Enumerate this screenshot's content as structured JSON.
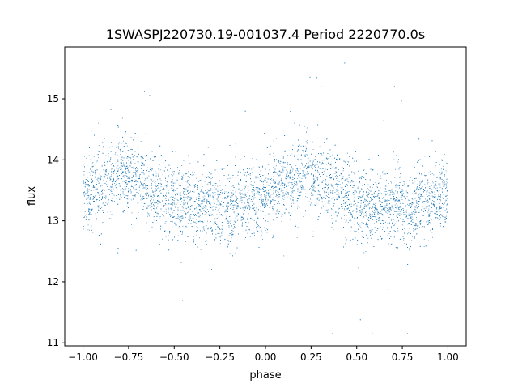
{
  "chart_data": {
    "type": "scatter",
    "title": "1SWASPJ220730.19-001037.4 Period 2220770.0s",
    "xlabel": "phase",
    "ylabel": "flux",
    "xlim": [
      -1.1,
      1.1
    ],
    "ylim": [
      10.95,
      15.85
    ],
    "xticks": [
      -1.0,
      -0.75,
      -0.5,
      -0.25,
      0.0,
      0.25,
      0.5,
      0.75,
      1.0
    ],
    "xtick_labels": [
      "−1.00",
      "−0.75",
      "−0.50",
      "−0.25",
      "0.00",
      "0.25",
      "0.50",
      "0.75",
      "1.00"
    ],
    "yticks": [
      11,
      12,
      13,
      14,
      15
    ],
    "ytick_labels": [
      "11",
      "12",
      "13",
      "14",
      "15"
    ],
    "grid": false,
    "legend": "none",
    "marker_color": "#1f77b4",
    "series": [
      {
        "phase_profile": [
          {
            "x": -1.0,
            "y": 13.45
          },
          {
            "x": -0.9,
            "y": 13.55
          },
          {
            "x": -0.8,
            "y": 13.8
          },
          {
            "x": -0.7,
            "y": 13.7
          },
          {
            "x": -0.6,
            "y": 13.5
          },
          {
            "x": -0.5,
            "y": 13.3
          },
          {
            "x": -0.4,
            "y": 13.25
          },
          {
            "x": -0.3,
            "y": 13.25
          },
          {
            "x": -0.2,
            "y": 13.2
          },
          {
            "x": -0.1,
            "y": 13.3
          },
          {
            "x": 0.0,
            "y": 13.45
          },
          {
            "x": 0.1,
            "y": 13.55
          },
          {
            "x": 0.2,
            "y": 13.8
          },
          {
            "x": 0.3,
            "y": 13.7
          },
          {
            "x": 0.4,
            "y": 13.5
          },
          {
            "x": 0.5,
            "y": 13.3
          },
          {
            "x": 0.6,
            "y": 13.25
          },
          {
            "x": 0.7,
            "y": 13.25
          },
          {
            "x": 0.8,
            "y": 13.2
          },
          {
            "x": 0.9,
            "y": 13.3
          },
          {
            "x": 1.0,
            "y": 13.45
          }
        ],
        "scatter_sigma": 0.3,
        "y_min": 11.15,
        "y_max": 15.7,
        "point_count": 9000
      }
    ]
  }
}
